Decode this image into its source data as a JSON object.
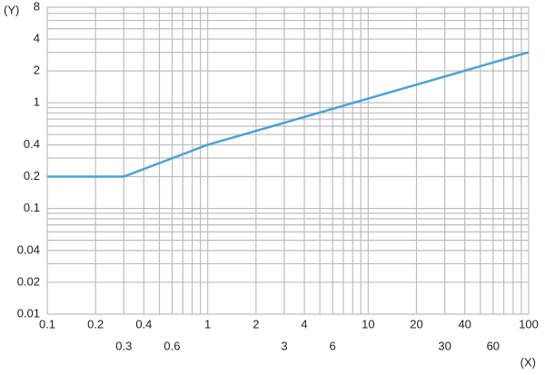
{
  "chart_data": {
    "type": "line",
    "x_label": "(X)",
    "y_label": "(Y)",
    "x": [
      0.1,
      0.3,
      1,
      100
    ],
    "values": [
      0.2,
      0.2,
      0.4,
      3
    ],
    "color": "#4aa3d6",
    "xlim": [
      0.1,
      100
    ],
    "ylim": [
      0.01,
      8
    ],
    "log_x": true,
    "log_y": true,
    "grid": true,
    "xticks": [
      0.1,
      0.2,
      0.3,
      0.4,
      0.6,
      1,
      2,
      3,
      4,
      6,
      10,
      20,
      30,
      40,
      60,
      100
    ],
    "yticks": [
      0.01,
      0.02,
      0.04,
      0.1,
      0.2,
      0.4,
      1,
      2,
      4,
      8
    ],
    "x_minor_grid": [
      0.5,
      0.7,
      0.8,
      0.9,
      5,
      7,
      8,
      9,
      50,
      70,
      80,
      90
    ],
    "y_minor_grid": [
      0.03,
      0.05,
      0.06,
      0.07,
      0.08,
      0.09,
      0.3,
      0.5,
      0.6,
      0.7,
      0.8,
      0.9,
      3,
      5,
      6,
      7
    ]
  }
}
